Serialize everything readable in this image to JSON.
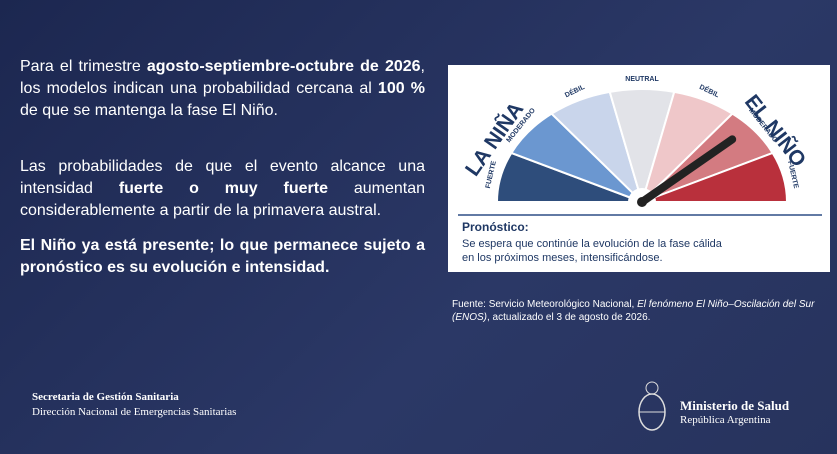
{
  "body": {
    "paragraphs": [
      [
        "Para el trimestre ",
        "agosto-septiembre-octubre de 2026",
        ", los modelos indican una probabilidad cercana al ",
        "100 %",
        " de que se mantenga la fase El Niño."
      ],
      [
        "Las probabilidades de que el evento alcance una intensidad ",
        "fuerte o muy fuerte",
        " aumentan considerablemente a partir de la primavera austral."
      ],
      [
        "El Niño ya está presente; lo que permanece sujeto a pronóstico es su evolución e intensidad."
      ]
    ]
  },
  "gauge": {
    "left_title": "LA NIÑA",
    "right_title": "EL NIÑO",
    "segments": [
      "FUERTE",
      "MODERADO",
      "DÉBIL",
      "NEUTRAL",
      "DÉBIL",
      "MODERADO",
      "FUERTE"
    ],
    "forecast_title": "Pronóstico:",
    "forecast_lines": [
      "Se espera que continúe la evolución de la fase cálida",
      "en los próximos meses, intensificándose."
    ]
  },
  "caption": [
    "Fuente: Servicio Meteorológico Nacional, ",
    "El fenómeno El Niño–Oscilación del Sur (ENOS)",
    ", actualizado el 3 de agosto de 2026."
  ],
  "footer": {
    "left": [
      "Secretaria de Gestión Sanitaria",
      "Dirección Nacional de Emergencias Sanitarias"
    ],
    "right": [
      "Ministerio de Salud",
      "República Argentina"
    ]
  }
}
